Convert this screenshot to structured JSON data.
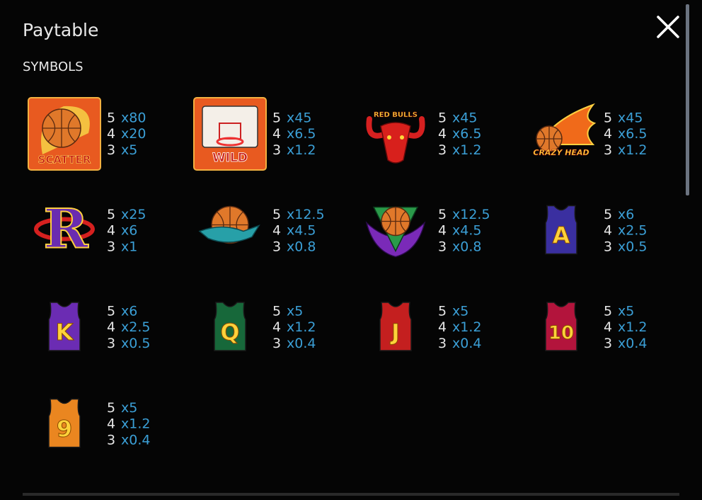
{
  "header": {
    "title": "Paytable",
    "section": "SYMBOLS"
  },
  "symbols": [
    {
      "label": "SCATTER",
      "pays": [
        {
          "count": 5,
          "multiplier": "x80"
        },
        {
          "count": 4,
          "multiplier": "x20"
        },
        {
          "count": 3,
          "multiplier": "x5"
        }
      ]
    },
    {
      "label": "WILD",
      "pays": [
        {
          "count": 5,
          "multiplier": "x45"
        },
        {
          "count": 4,
          "multiplier": "x6.5"
        },
        {
          "count": 3,
          "multiplier": "x1.2"
        }
      ]
    },
    {
      "label": "RED BULLS",
      "pays": [
        {
          "count": 5,
          "multiplier": "x45"
        },
        {
          "count": 4,
          "multiplier": "x6.5"
        },
        {
          "count": 3,
          "multiplier": "x1.2"
        }
      ]
    },
    {
      "label": "CRAZY HEAD",
      "pays": [
        {
          "count": 5,
          "multiplier": "x45"
        },
        {
          "count": 4,
          "multiplier": "x6.5"
        },
        {
          "count": 3,
          "multiplier": "x1.2"
        }
      ]
    },
    {
      "label": "R",
      "pays": [
        {
          "count": 5,
          "multiplier": "x25"
        },
        {
          "count": 4,
          "multiplier": "x6"
        },
        {
          "count": 3,
          "multiplier": "x1"
        }
      ]
    },
    {
      "pays": [
        {
          "count": 5,
          "multiplier": "x12.5"
        },
        {
          "count": 4,
          "multiplier": "x4.5"
        },
        {
          "count": 3,
          "multiplier": "x0.8"
        }
      ]
    },
    {
      "pays": [
        {
          "count": 5,
          "multiplier": "x12.5"
        },
        {
          "count": 4,
          "multiplier": "x4.5"
        },
        {
          "count": 3,
          "multiplier": "x0.8"
        }
      ]
    },
    {
      "label": "A",
      "pays": [
        {
          "count": 5,
          "multiplier": "x6"
        },
        {
          "count": 4,
          "multiplier": "x2.5"
        },
        {
          "count": 3,
          "multiplier": "x0.5"
        }
      ]
    },
    {
      "label": "K",
      "pays": [
        {
          "count": 5,
          "multiplier": "x6"
        },
        {
          "count": 4,
          "multiplier": "x2.5"
        },
        {
          "count": 3,
          "multiplier": "x0.5"
        }
      ]
    },
    {
      "label": "Q",
      "pays": [
        {
          "count": 5,
          "multiplier": "x5"
        },
        {
          "count": 4,
          "multiplier": "x1.2"
        },
        {
          "count": 3,
          "multiplier": "x0.4"
        }
      ]
    },
    {
      "label": "J",
      "pays": [
        {
          "count": 5,
          "multiplier": "x5"
        },
        {
          "count": 4,
          "multiplier": "x1.2"
        },
        {
          "count": 3,
          "multiplier": "x0.4"
        }
      ]
    },
    {
      "label": "10",
      "pays": [
        {
          "count": 5,
          "multiplier": "x5"
        },
        {
          "count": 4,
          "multiplier": "x1.2"
        },
        {
          "count": 3,
          "multiplier": "x0.4"
        }
      ]
    },
    {
      "label": "9",
      "pays": [
        {
          "count": 5,
          "multiplier": "x5"
        },
        {
          "count": 4,
          "multiplier": "x1.2"
        },
        {
          "count": 3,
          "multiplier": "x0.4"
        }
      ]
    }
  ]
}
